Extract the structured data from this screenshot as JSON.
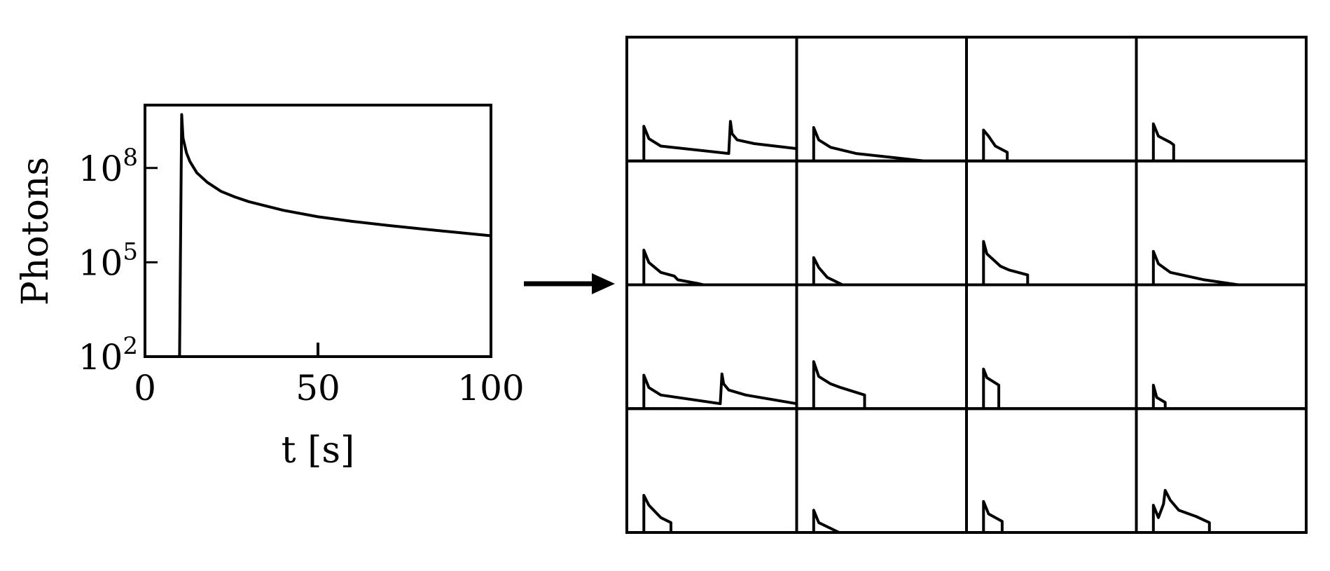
{
  "chart_data": [
    {
      "type": "line",
      "xlabel": "t [s]",
      "ylabel": "Photons",
      "xlim": [
        0,
        100
      ],
      "ylim": [
        100,
        10000000000
      ],
      "y_scale": "log",
      "grid": false,
      "x_ticks": [
        {
          "value": 0,
          "label": "0"
        },
        {
          "value": 50,
          "label": "50"
        },
        {
          "value": 100,
          "label": "100"
        }
      ],
      "y_ticks": [
        {
          "value": 100,
          "base": "10",
          "exp": "2"
        },
        {
          "value": 100000,
          "base": "10",
          "exp": "5"
        },
        {
          "value": 100000000,
          "base": "10",
          "exp": "8"
        }
      ],
      "series": [
        {
          "x": [
            10,
            10.6,
            11,
            12,
            13,
            15,
            18,
            22,
            26,
            30,
            40,
            50,
            60,
            70,
            80,
            90,
            100
          ],
          "y": [
            100,
            5000000000,
            900000000,
            300000000,
            160000000,
            70000000,
            35000000,
            18000000,
            12000000,
            8500000,
            4500000,
            2800000,
            2000000,
            1500000,
            1150000,
            900000,
            700000
          ]
        }
      ],
      "annotations": [
        {
          "type": "tick",
          "x": 50
        }
      ]
    },
    {
      "type": "line",
      "description_role": "grid of 16 subpanels, 4 rows x 4 columns, no axis labels",
      "rows": 4,
      "cols": 4,
      "panels": [
        {
          "row": 0,
          "col": 0,
          "x": [
            0.1,
            0.1,
            0.13,
            0.2,
            0.6,
            0.61,
            0.62,
            0.65,
            0.75,
            1.0
          ],
          "y": [
            0,
            0.28,
            0.18,
            0.12,
            0.06,
            0.32,
            0.22,
            0.17,
            0.14,
            0.1
          ]
        },
        {
          "row": 0,
          "col": 1,
          "x": [
            0.1,
            0.1,
            0.13,
            0.2,
            0.35,
            0.55,
            0.75
          ],
          "y": [
            0,
            0.27,
            0.17,
            0.11,
            0.06,
            0.03,
            0
          ]
        },
        {
          "row": 0,
          "col": 2,
          "x": [
            0.1,
            0.1,
            0.13,
            0.17,
            0.24,
            0.24
          ],
          "y": [
            0,
            0.25,
            0.2,
            0.12,
            0.07,
            0
          ]
        },
        {
          "row": 0,
          "col": 3,
          "x": [
            0.1,
            0.1,
            0.13,
            0.2,
            0.22,
            0.22
          ],
          "y": [
            0,
            0.3,
            0.2,
            0.15,
            0.13,
            0
          ]
        },
        {
          "row": 1,
          "col": 0,
          "x": [
            0.1,
            0.1,
            0.13,
            0.2,
            0.28,
            0.3,
            0.42,
            0.45
          ],
          "y": [
            0,
            0.28,
            0.18,
            0.1,
            0.07,
            0.04,
            0.01,
            0
          ]
        },
        {
          "row": 1,
          "col": 1,
          "x": [
            0.1,
            0.1,
            0.13,
            0.18,
            0.27
          ],
          "y": [
            0,
            0.22,
            0.14,
            0.06,
            0
          ]
        },
        {
          "row": 1,
          "col": 2,
          "x": [
            0.1,
            0.1,
            0.12,
            0.16,
            0.2,
            0.25,
            0.36,
            0.36
          ],
          "y": [
            0,
            0.35,
            0.25,
            0.2,
            0.15,
            0.12,
            0.08,
            0
          ]
        },
        {
          "row": 1,
          "col": 3,
          "x": [
            0.1,
            0.1,
            0.13,
            0.2,
            0.4,
            0.6
          ],
          "y": [
            0,
            0.27,
            0.17,
            0.1,
            0.04,
            0
          ]
        },
        {
          "row": 2,
          "col": 0,
          "x": [
            0.1,
            0.1,
            0.13,
            0.2,
            0.55,
            0.56,
            0.57,
            0.6,
            0.7,
            1.0
          ],
          "y": [
            0,
            0.27,
            0.17,
            0.11,
            0.04,
            0.28,
            0.2,
            0.15,
            0.11,
            0.04
          ]
        },
        {
          "row": 2,
          "col": 1,
          "x": [
            0.1,
            0.1,
            0.13,
            0.2,
            0.26,
            0.4,
            0.4
          ],
          "y": [
            0,
            0.38,
            0.26,
            0.2,
            0.17,
            0.11,
            0
          ]
        },
        {
          "row": 2,
          "col": 2,
          "x": [
            0.1,
            0.1,
            0.12,
            0.19,
            0.19
          ],
          "y": [
            0,
            0.32,
            0.25,
            0.19,
            0
          ]
        },
        {
          "row": 2,
          "col": 3,
          "x": [
            0.1,
            0.1,
            0.12,
            0.17,
            0.17
          ],
          "y": [
            0,
            0.19,
            0.09,
            0.05,
            0
          ]
        },
        {
          "row": 3,
          "col": 0,
          "x": [
            0.1,
            0.1,
            0.13,
            0.2,
            0.26,
            0.26
          ],
          "y": [
            0,
            0.3,
            0.22,
            0.12,
            0.08,
            0
          ]
        },
        {
          "row": 3,
          "col": 1,
          "x": [
            0.1,
            0.1,
            0.13,
            0.25
          ],
          "y": [
            0,
            0.18,
            0.08,
            0
          ]
        },
        {
          "row": 3,
          "col": 2,
          "x": [
            0.1,
            0.1,
            0.13,
            0.21,
            0.21
          ],
          "y": [
            0,
            0.25,
            0.15,
            0.09,
            0
          ]
        },
        {
          "row": 3,
          "col": 3,
          "x": [
            0.1,
            0.1,
            0.13,
            0.16,
            0.17,
            0.2,
            0.25,
            0.35,
            0.43,
            0.43
          ],
          "y": [
            0,
            0.22,
            0.12,
            0.23,
            0.34,
            0.26,
            0.18,
            0.13,
            0.08,
            0
          ]
        }
      ]
    }
  ]
}
